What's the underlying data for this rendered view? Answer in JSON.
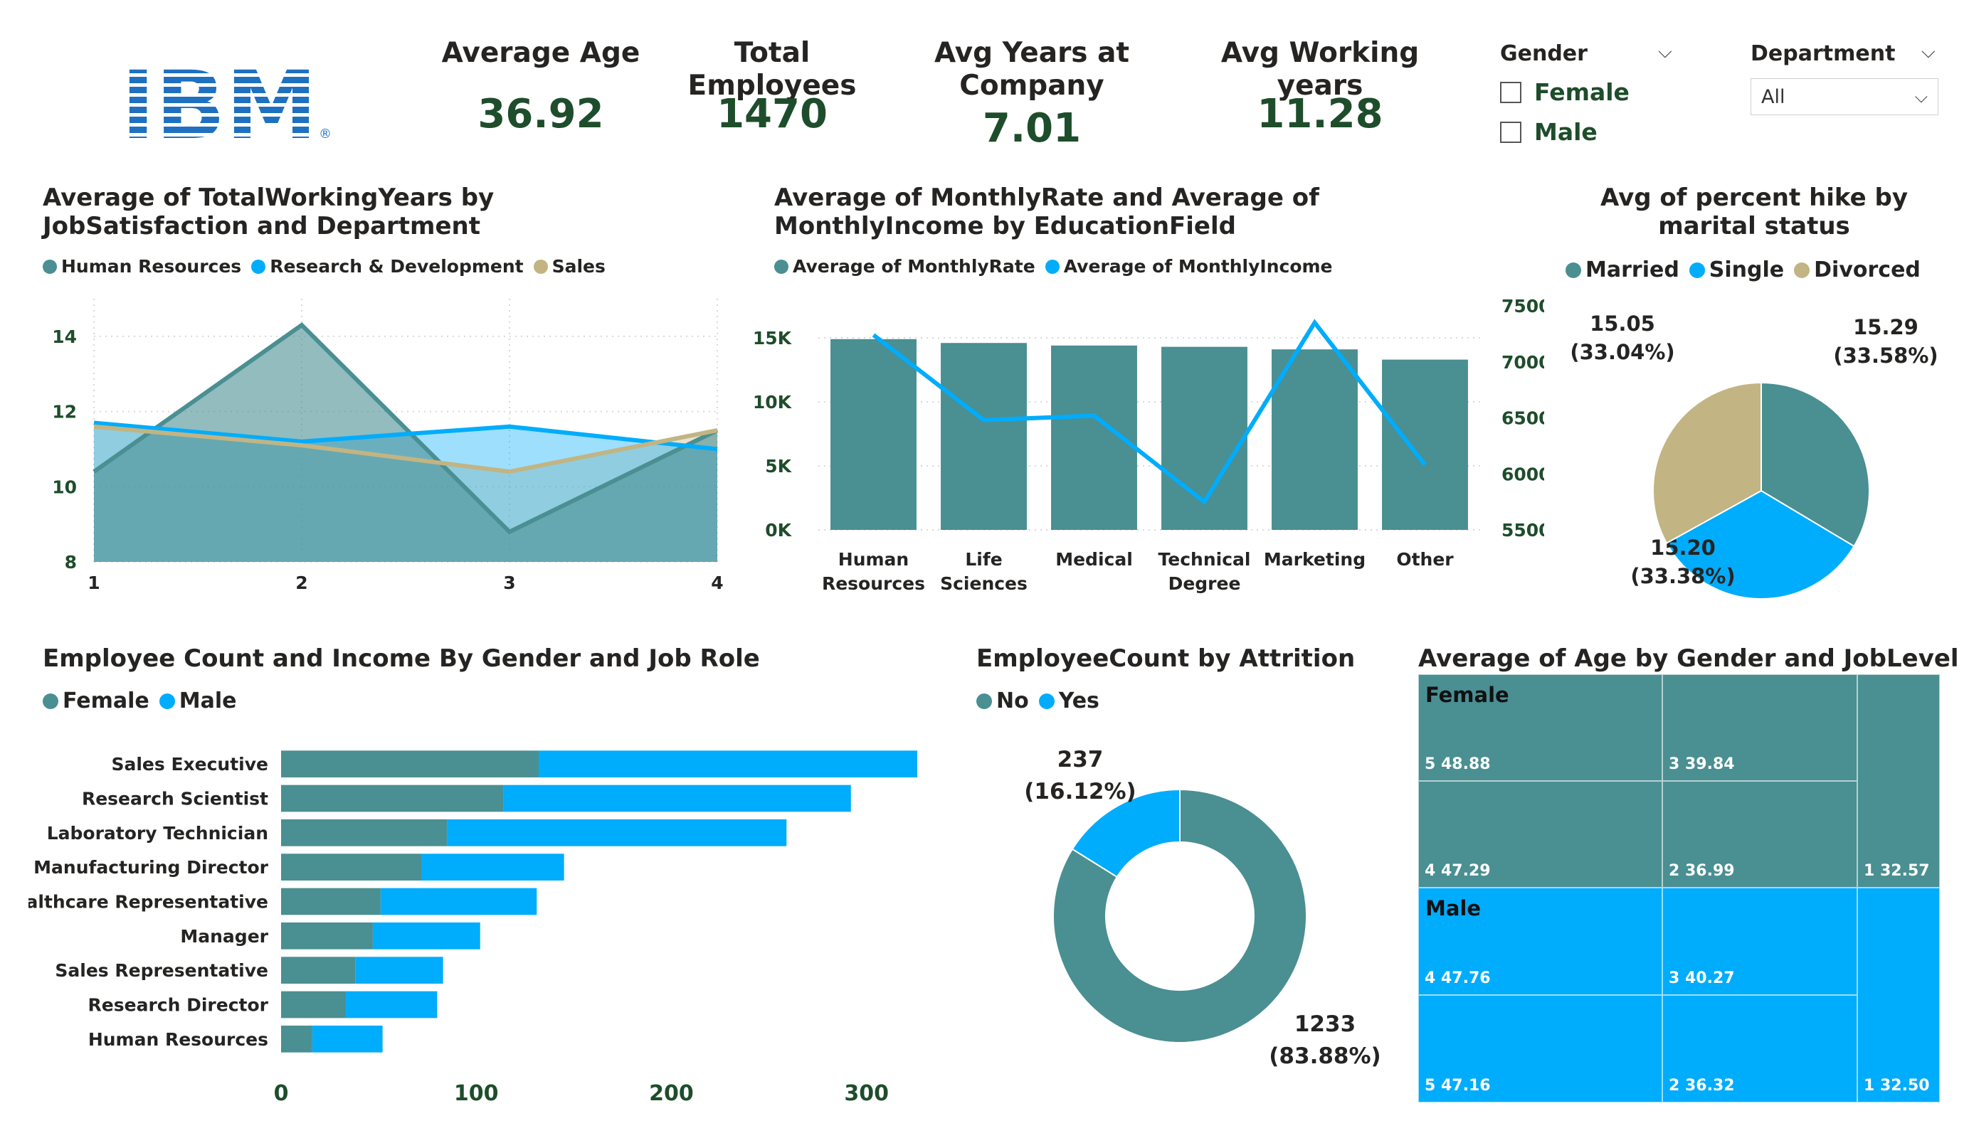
{
  "logo": {
    "text": "IBM",
    "color": "#1f70c1",
    "mark": "®"
  },
  "kpis": [
    {
      "title": "Average Age",
      "value": "36.92"
    },
    {
      "title": "Total Employees",
      "value": "1470"
    },
    {
      "title": "Avg Years at Company",
      "value": "7.01"
    },
    {
      "title": "Avg Working years",
      "value": "11.28"
    }
  ],
  "slicers": {
    "gender": {
      "title": "Gender",
      "options": [
        "Female",
        "Male"
      ]
    },
    "department": {
      "title": "Department",
      "selected": "All"
    }
  },
  "colors": {
    "teal": "#4a8f92",
    "blue": "#00acfc",
    "tan": "#c2b483"
  },
  "chart_data": [
    {
      "id": "working_years",
      "type": "area",
      "title": "Average of TotalWorkingYears by JobSatisfaction and Department",
      "x": [
        1,
        2,
        3,
        4
      ],
      "ylim": [
        8,
        15
      ],
      "yticks": [
        8,
        10,
        12,
        14
      ],
      "grid": true,
      "legend_position": "top-left",
      "series": [
        {
          "name": "Human Resources",
          "values": [
            10.4,
            14.3,
            8.8,
            11.5
          ]
        },
        {
          "name": "Research & Development",
          "values": [
            11.7,
            11.2,
            11.6,
            11.0
          ]
        },
        {
          "name": "Sales",
          "values": [
            11.6,
            11.1,
            10.4,
            11.5
          ]
        }
      ]
    },
    {
      "id": "monthly_rate_income",
      "type": "bar",
      "title": "Average of MonthlyRate and Average of MonthlyIncome by EducationField",
      "categories": [
        "Human Resources",
        "Life Sciences",
        "Medical",
        "Technical Degree",
        "Marketing",
        "Other"
      ],
      "y_left_ticks": [
        "0K",
        "5K",
        "10K",
        "15K"
      ],
      "y_left_lim": [
        0,
        17500
      ],
      "y_right_ticks": [
        "5500",
        "6000",
        "6500",
        "7000",
        "7500"
      ],
      "y_right_lim": [
        5500,
        7500
      ],
      "grid": true,
      "legend_position": "top-left",
      "series": [
        {
          "name": "Average of MonthlyRate",
          "type": "bar",
          "values": [
            14900,
            14600,
            14400,
            14300,
            14100,
            13300
          ]
        },
        {
          "name": "Average of MonthlyIncome",
          "type": "line",
          "values": [
            7240,
            6480,
            6520,
            5750,
            7350,
            6080
          ]
        }
      ]
    },
    {
      "id": "percent_hike",
      "type": "pie",
      "title": "Avg of percent hike by marital status",
      "legend_position": "top",
      "slices": [
        {
          "name": "Married",
          "value": 15.29,
          "label": "15.29",
          "pct": "(33.58%)"
        },
        {
          "name": "Single",
          "value": 15.2,
          "label": "15.20",
          "pct": "(33.38%)"
        },
        {
          "name": "Divorced",
          "value": 15.05,
          "label": "15.05",
          "pct": "(33.04%)"
        }
      ]
    },
    {
      "id": "gender_job_role",
      "type": "bar",
      "orientation": "horizontal",
      "stacked": true,
      "title": "Employee Count and Income By Gender and Job Role",
      "categories": [
        "Sales Executive",
        "Research Scientist",
        "Laboratory Technician",
        "Manufacturing Director",
        "Healthcare Representative",
        "Manager",
        "Sales Representative",
        "Research Director",
        "Human Resources"
      ],
      "xticks": [
        0,
        100,
        200,
        300
      ],
      "xlim": [
        0,
        330
      ],
      "legend_position": "top-left",
      "series": [
        {
          "name": "Female",
          "values": [
            132,
            114,
            85,
            72,
            51,
            47,
            38,
            33,
            16
          ]
        },
        {
          "name": "Male",
          "values": [
            194,
            178,
            174,
            73,
            80,
            55,
            45,
            47,
            36
          ]
        }
      ]
    },
    {
      "id": "attrition",
      "type": "pie",
      "donut": true,
      "title": "EmployeeCount by Attrition",
      "legend_position": "top-left",
      "slices": [
        {
          "name": "No",
          "value": 1233,
          "label": "1233",
          "pct": "(83.88%)"
        },
        {
          "name": "Yes",
          "value": 237,
          "label": "237",
          "pct": "(16.12%)"
        }
      ]
    },
    {
      "id": "age_gender_joblevel",
      "type": "treemap",
      "title": "Average of Age by Gender and JobLevel",
      "groups": [
        {
          "name": "Female",
          "cells": [
            {
              "level": "5",
              "value": 48.88,
              "label": "5 48.88"
            },
            {
              "level": "3",
              "value": 39.84,
              "label": "3 39.84"
            },
            {
              "level": "4",
              "value": 47.29,
              "label": "4 47.29"
            },
            {
              "level": "2",
              "value": 36.99,
              "label": "2 36.99"
            },
            {
              "level": "1",
              "value": 32.57,
              "label": "1 32.57"
            }
          ]
        },
        {
          "name": "Male",
          "cells": [
            {
              "level": "4",
              "value": 47.76,
              "label": "4 47.76"
            },
            {
              "level": "3",
              "value": 40.27,
              "label": "3 40.27"
            },
            {
              "level": "5",
              "value": 47.16,
              "label": "5 47.16"
            },
            {
              "level": "2",
              "value": 36.32,
              "label": "2 36.32"
            },
            {
              "level": "1",
              "value": 32.5,
              "label": "1 32.50"
            }
          ]
        }
      ]
    }
  ]
}
